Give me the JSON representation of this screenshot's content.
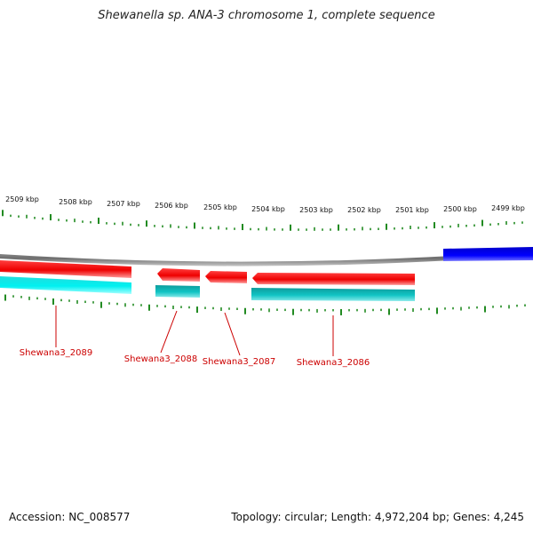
{
  "title": "Shewanella sp. ANA-3 chromosome 1, complete sequence",
  "accession": "Accession: NC_008577",
  "summary": "Topology: circular; Length: 4,972,204 bp; Genes: 4,245",
  "scale_labels": [
    "2509 kbp",
    "2508 kbp",
    "2507 kbp",
    "2506 kbp",
    "2505 kbp",
    "2504 kbp",
    "2503 kbp",
    "2502 kbp",
    "2501 kbp",
    "2500 kbp",
    "2499 kbp"
  ],
  "genes": [
    {
      "name": "Shewana3_2089",
      "strand": "forward-right-edge"
    },
    {
      "name": "Shewana3_2088",
      "strand": "reverse"
    },
    {
      "name": "Shewana3_2087",
      "strand": "reverse"
    },
    {
      "name": "Shewana3_2086",
      "strand": "reverse"
    }
  ],
  "colors": {
    "cds": "#ff0000",
    "cds_highlight": "#ff9999",
    "feature_cyan": "#00ffff",
    "feature_teal": "#00bbbb",
    "backbone": "#888888",
    "other_strand": "#0000ff",
    "tick": "#228b22",
    "gene_label": "#cc0000"
  }
}
